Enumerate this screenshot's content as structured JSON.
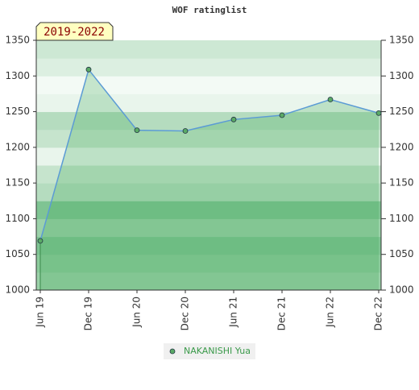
{
  "chart_data": {
    "type": "area",
    "title": "WOF ratinglist",
    "badge": "2019-2022",
    "categories": [
      "Jun 19",
      "Dec 19",
      "Jun 20",
      "Dec 20",
      "Jun 21",
      "Dec 21",
      "Jun 22",
      "Dec 22"
    ],
    "series": [
      {
        "name": "NAKANISHI Yua",
        "color": "#5b9bd5",
        "marker_color": "#5aaa66",
        "values": [
          1069,
          1309,
          1224,
          1223,
          1239,
          1245,
          1267,
          1248
        ]
      }
    ],
    "ylim": [
      1000,
      1350
    ],
    "yticks": [
      1000,
      1050,
      1100,
      1150,
      1200,
      1250,
      1300,
      1350
    ],
    "grid": true
  }
}
